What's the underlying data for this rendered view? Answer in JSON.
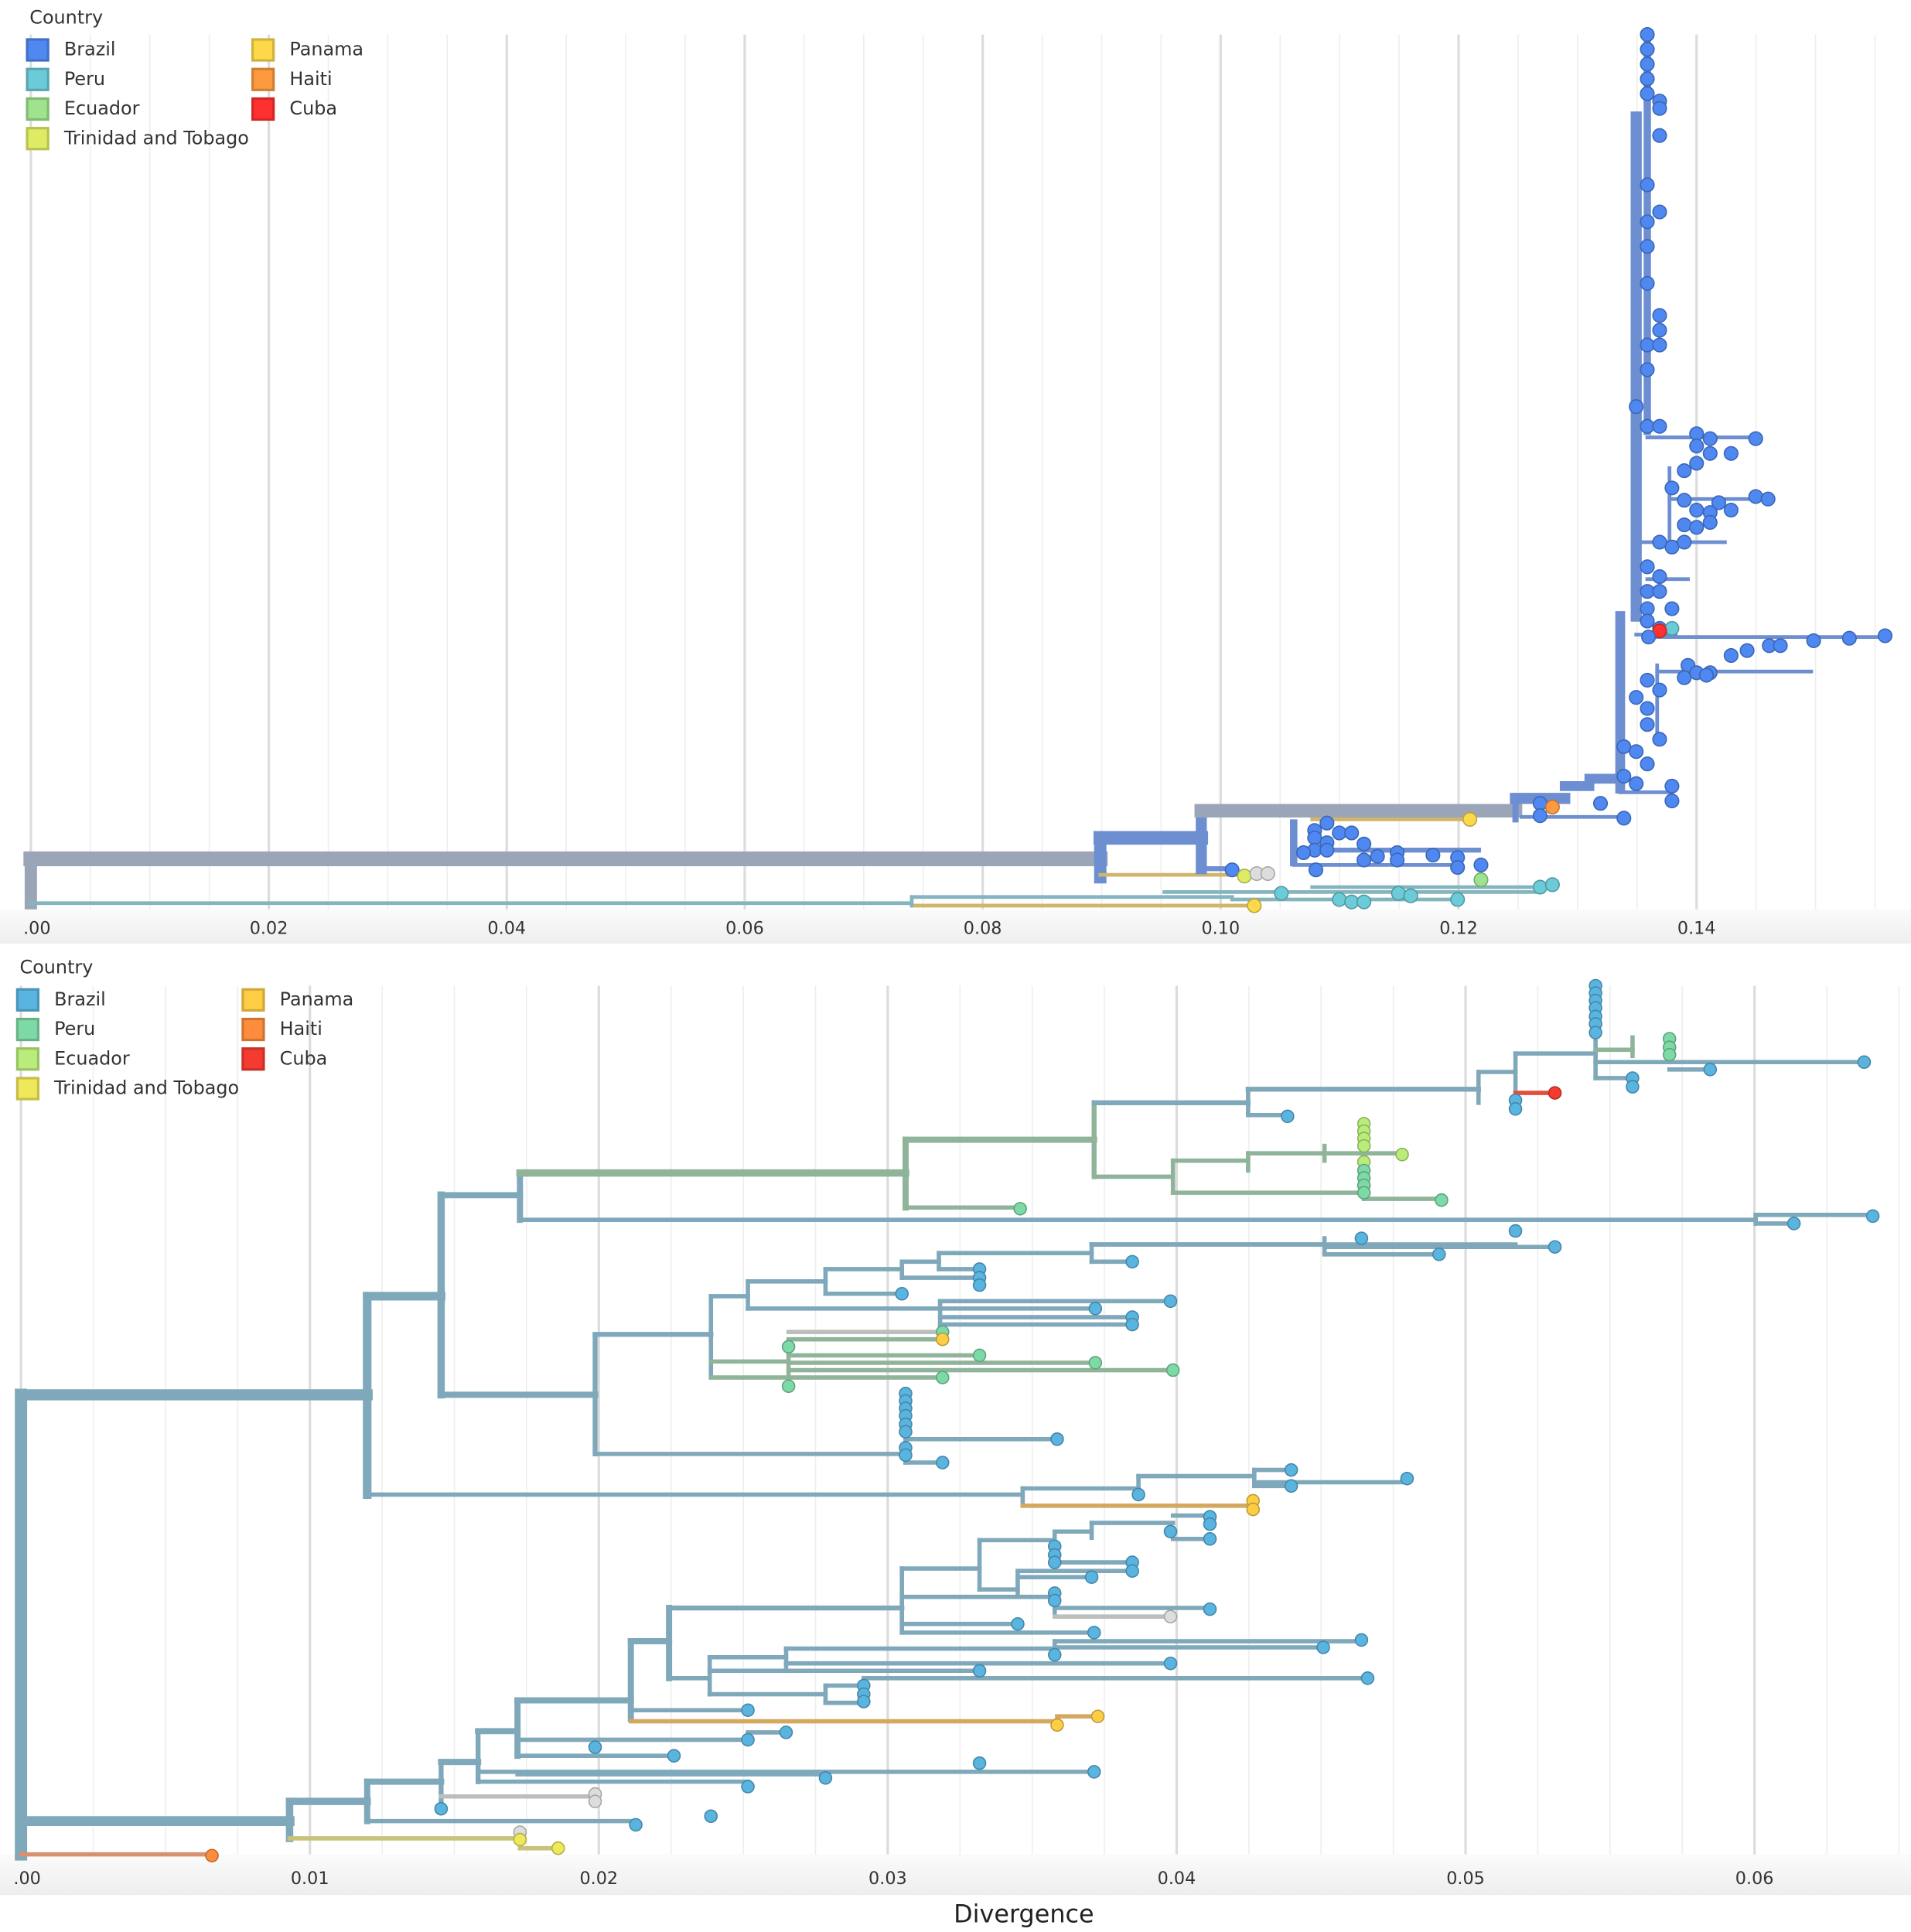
{
  "panels": [
    {
      "legend": {
        "title": "Country",
        "items": [
          {
            "label": "Brazil",
            "color": "#4f88f0"
          },
          {
            "label": "Peru",
            "color": "#6ccbd8"
          },
          {
            "label": "Ecuador",
            "color": "#9fe38e"
          },
          {
            "label": "Trinidad and Tobago",
            "color": "#dfec63"
          },
          {
            "label": "Panama",
            "color": "#fdd94a"
          },
          {
            "label": "Haiti",
            "color": "#fd9a40"
          },
          {
            "label": "Cuba",
            "color": "#ff3030"
          }
        ]
      },
      "axis": {
        "ticks": [
          ".00",
          "0.02",
          "0.04",
          "0.06",
          "0.08",
          "0.10",
          "0.12",
          "0.14"
        ]
      }
    },
    {
      "legend": {
        "title": "Country",
        "items": [
          {
            "label": "Brazil",
            "color": "#5ab4e0"
          },
          {
            "label": "Peru",
            "color": "#7dd9a6"
          },
          {
            "label": "Ecuador",
            "color": "#b9ec7a"
          },
          {
            "label": "Trinidad and Tobago",
            "color": "#eee85a"
          },
          {
            "label": "Panama",
            "color": "#fdcd45"
          },
          {
            "label": "Haiti",
            "color": "#fd8c3c"
          },
          {
            "label": "Cuba",
            "color": "#f53a2f"
          }
        ]
      },
      "axis": {
        "ticks": [
          ".00",
          "0.01",
          "0.02",
          "0.03",
          "0.04",
          "0.05",
          "0.06"
        ],
        "title": "Divergence"
      }
    }
  ]
}
